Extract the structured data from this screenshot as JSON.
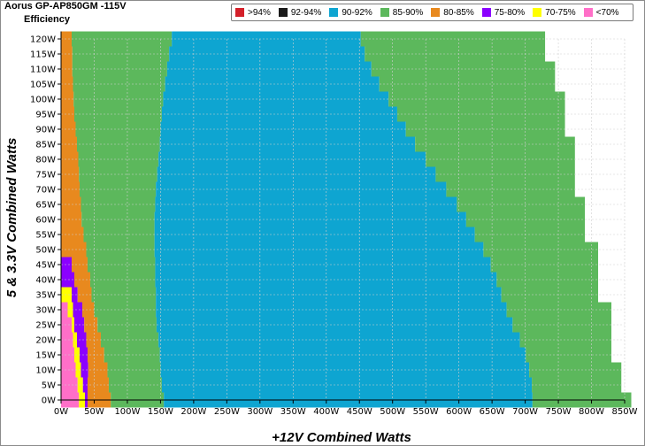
{
  "chart_data": {
    "type": "heatmap",
    "title": "Aorus GP-AP850GM -115V",
    "subtitle": "Efficiency",
    "xlabel": "+12V Combined Watts",
    "ylabel": "5 & 3.3V Combined Watts",
    "xlim": [
      0,
      850
    ],
    "ylim": [
      0,
      120
    ],
    "grid": true,
    "legend_position": "top-right",
    "legend": [
      {
        "label": ">94%",
        "color": "#d4202a"
      },
      {
        "label": "92-94%",
        "color": "#1a1a1a"
      },
      {
        "label": "90-92%",
        "color": "#0ea5d1"
      },
      {
        "label": "85-90%",
        "color": "#5cb85c"
      },
      {
        "label": "80-85%",
        "color": "#e8891e"
      },
      {
        "label": "75-80%",
        "color": "#8b00ff"
      },
      {
        "label": "70-75%",
        "color": "#ffff00"
      },
      {
        "label": "<70%",
        "color": "#ff6fc8"
      }
    ],
    "x_ticks": [
      "0W",
      "50W",
      "100W",
      "150W",
      "200W",
      "250W",
      "300W",
      "350W",
      "400W",
      "450W",
      "500W",
      "550W",
      "600W",
      "650W",
      "700W",
      "750W",
      "800W",
      "850W"
    ],
    "y_ticks": [
      "0W",
      "5W",
      "10W",
      "15W",
      "20W",
      "25W",
      "30W",
      "35W",
      "40W",
      "45W",
      "50W",
      "55W",
      "60W",
      "65W",
      "70W",
      "75W",
      "80W",
      "85W",
      "90W",
      "95W",
      "100W",
      "105W",
      "110W",
      "115W",
      "120W"
    ],
    "y_step": 5,
    "rows": [
      {
        "y": 0,
        "pink": 27,
        "yellow": 36,
        "purple": 40,
        "orange": 75,
        "green85low": 155,
        "blue": 711,
        "max": 860
      },
      {
        "y": 5,
        "pink": 25,
        "yellow": 33,
        "purple": 40,
        "orange": 72,
        "green85low": 152,
        "blue": 710,
        "max": 845
      },
      {
        "y": 10,
        "pink": 22,
        "yellow": 30,
        "purple": 41,
        "orange": 70,
        "green85low": 150,
        "blue": 706,
        "max": 845
      },
      {
        "y": 15,
        "pink": 20,
        "yellow": 28,
        "purple": 40,
        "orange": 65,
        "green85low": 149,
        "blue": 701,
        "max": 830
      },
      {
        "y": 20,
        "pink": 18,
        "yellow": 24,
        "purple": 38,
        "orange": 60,
        "green85low": 147,
        "blue": 692,
        "max": 830
      },
      {
        "y": 25,
        "pink": 16,
        "yellow": 20,
        "purple": 35,
        "orange": 55,
        "green85low": 144,
        "blue": 681,
        "max": 830
      },
      {
        "y": 30,
        "pink": 10,
        "yellow": 18,
        "purple": 32,
        "orange": 50,
        "green85low": 143,
        "blue": 672,
        "max": 830
      },
      {
        "y": 35,
        "pink": 0,
        "yellow": 16,
        "purple": 25,
        "orange": 46,
        "green85low": 143,
        "blue": 664,
        "max": 810
      },
      {
        "y": 40,
        "pink": 0,
        "yellow": 0,
        "purple": 20,
        "orange": 44,
        "green85low": 142,
        "blue": 657,
        "max": 810
      },
      {
        "y": 45,
        "pink": 0,
        "yellow": 0,
        "purple": 16,
        "orange": 40,
        "green85low": 142,
        "blue": 648,
        "max": 810
      },
      {
        "y": 50,
        "pink": 0,
        "yellow": 0,
        "purple": 0,
        "orange": 38,
        "green85low": 141,
        "blue": 637,
        "max": 810
      },
      {
        "y": 55,
        "pink": 0,
        "yellow": 0,
        "purple": 0,
        "orange": 34,
        "green85low": 141,
        "blue": 624,
        "max": 790
      },
      {
        "y": 60,
        "pink": 0,
        "yellow": 0,
        "purple": 0,
        "orange": 31,
        "green85low": 141,
        "blue": 611,
        "max": 790
      },
      {
        "y": 65,
        "pink": 0,
        "yellow": 0,
        "purple": 0,
        "orange": 30,
        "green85low": 142,
        "blue": 597,
        "max": 790
      },
      {
        "y": 70,
        "pink": 0,
        "yellow": 0,
        "purple": 0,
        "orange": 28,
        "green85low": 143,
        "blue": 581,
        "max": 775
      },
      {
        "y": 75,
        "pink": 0,
        "yellow": 0,
        "purple": 0,
        "orange": 27,
        "green85low": 145,
        "blue": 565,
        "max": 775
      },
      {
        "y": 80,
        "pink": 0,
        "yellow": 0,
        "purple": 0,
        "orange": 26,
        "green85low": 147,
        "blue": 550,
        "max": 775
      },
      {
        "y": 85,
        "pink": 0,
        "yellow": 0,
        "purple": 0,
        "orange": 24,
        "green85low": 149,
        "blue": 534,
        "max": 775
      },
      {
        "y": 90,
        "pink": 0,
        "yellow": 0,
        "purple": 0,
        "orange": 22,
        "green85low": 150,
        "blue": 520,
        "max": 760
      },
      {
        "y": 95,
        "pink": 0,
        "yellow": 0,
        "purple": 0,
        "orange": 20,
        "green85low": 152,
        "blue": 507,
        "max": 760
      },
      {
        "y": 100,
        "pink": 0,
        "yellow": 0,
        "purple": 0,
        "orange": 19,
        "green85low": 154,
        "blue": 494,
        "max": 760
      },
      {
        "y": 105,
        "pink": 0,
        "yellow": 0,
        "purple": 0,
        "orange": 18,
        "green85low": 157,
        "blue": 480,
        "max": 745
      },
      {
        "y": 110,
        "pink": 0,
        "yellow": 0,
        "purple": 0,
        "orange": 17,
        "green85low": 160,
        "blue": 468,
        "max": 745
      },
      {
        "y": 115,
        "pink": 0,
        "yellow": 0,
        "purple": 0,
        "orange": 17,
        "green85low": 163,
        "blue": 458,
        "max": 730
      },
      {
        "y": 120,
        "pink": 0,
        "yellow": 0,
        "purple": 0,
        "orange": 16,
        "green85low": 167,
        "blue": 452,
        "max": 730
      }
    ]
  }
}
